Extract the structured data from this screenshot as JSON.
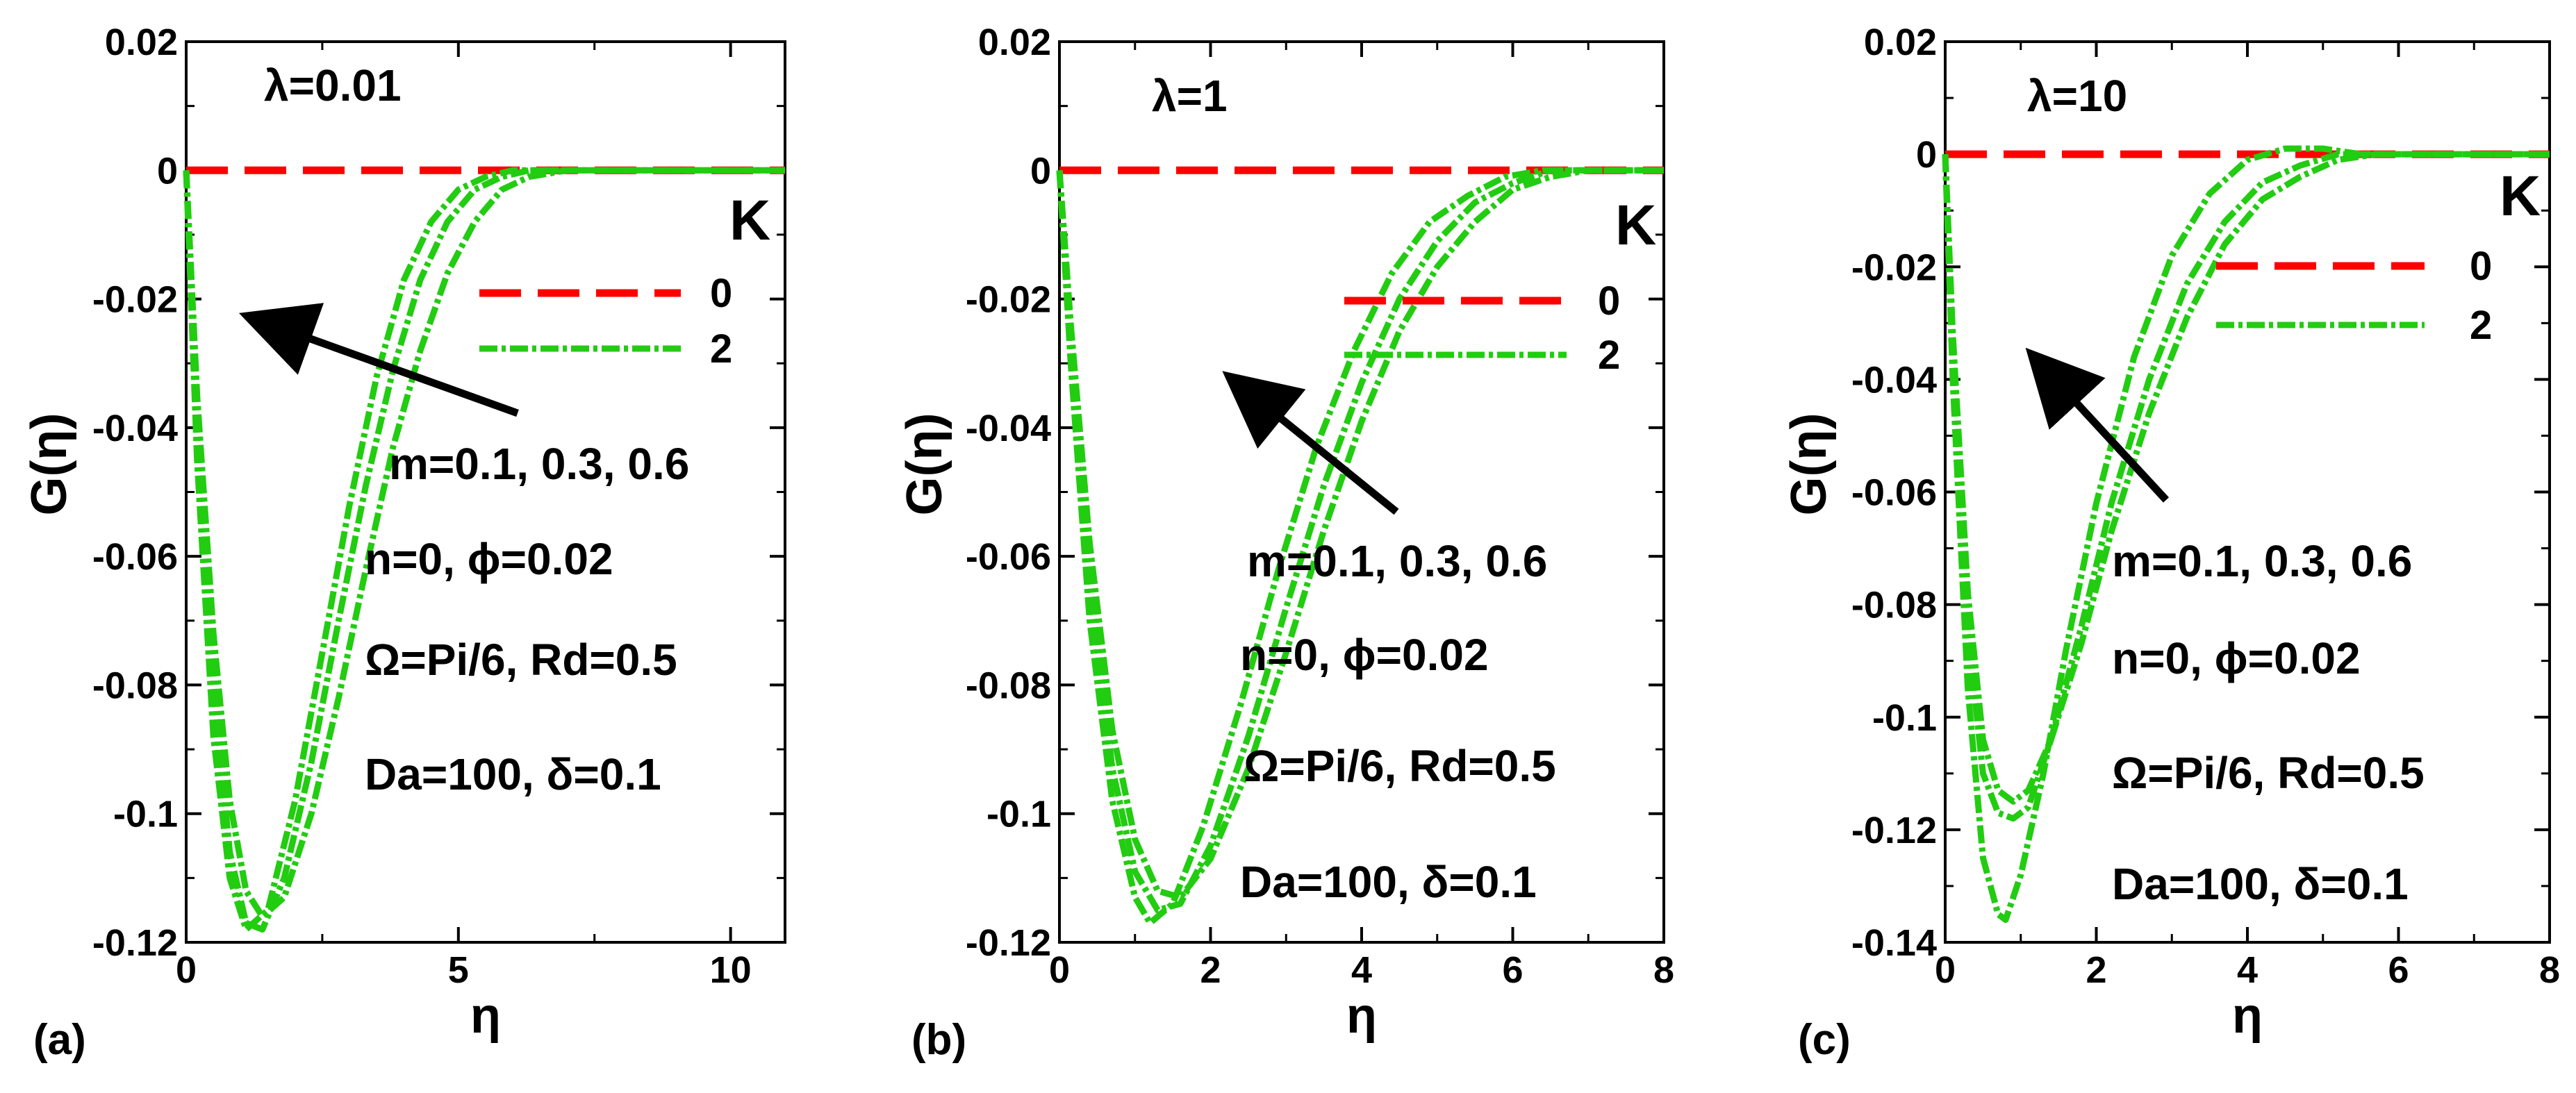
{
  "colors": {
    "k0": "#ff0000",
    "k2": "#22cc11",
    "arrow": "#000000",
    "axis": "#000000"
  },
  "chart_data": [
    {
      "type": "line",
      "panel_label": "(a)",
      "title": "λ=0.01",
      "xlabel": "η",
      "ylabel": "G(η)",
      "xlim": [
        0,
        11
      ],
      "ylim": [
        -0.12,
        0.02
      ],
      "xticks": [
        0,
        5,
        10
      ],
      "yticks": [
        0.02,
        0,
        -0.02,
        -0.04,
        -0.06,
        -0.08,
        -0.1,
        -0.12
      ],
      "legend": {
        "title": "K",
        "entries": [
          "0",
          "2"
        ]
      },
      "annotations": [
        "m=0.1, 0.3, 0.6",
        "n=0, ϕ=0.02",
        "Ω=Pi/6, Rd=0.5",
        "Da=100, δ=0.1"
      ],
      "series": [
        {
          "name": "K=0",
          "x": [
            0,
            11
          ],
          "y": [
            0,
            0
          ]
        },
        {
          "name": "K=2, m=0.1",
          "x": [
            0,
            0.2,
            0.5,
            0.8,
            1.1,
            1.5,
            2.0,
            2.5,
            3.0,
            3.5,
            4.0,
            4.5,
            5.0,
            5.5,
            6.0,
            6.5,
            7.5,
            9,
            11
          ],
          "y": [
            0,
            -0.045,
            -0.088,
            -0.11,
            -0.118,
            -0.115,
            -0.098,
            -0.075,
            -0.052,
            -0.032,
            -0.017,
            -0.008,
            -0.003,
            -0.001,
            0,
            0,
            0,
            0,
            0
          ]
        },
        {
          "name": "K=2, m=0.3",
          "x": [
            0,
            0.2,
            0.5,
            0.8,
            1.1,
            1.4,
            1.8,
            2.3,
            2.8,
            3.3,
            3.8,
            4.3,
            4.8,
            5.3,
            5.8,
            6.3,
            7.0,
            9,
            11
          ],
          "y": [
            0,
            -0.04,
            -0.08,
            -0.106,
            -0.117,
            -0.118,
            -0.11,
            -0.092,
            -0.07,
            -0.049,
            -0.031,
            -0.017,
            -0.008,
            -0.003,
            -0.001,
            0,
            0,
            0,
            0
          ]
        },
        {
          "name": "K=2, m=0.6",
          "x": [
            0,
            0.2,
            0.5,
            0.8,
            1.1,
            1.4,
            1.8,
            2.3,
            2.8,
            3.3,
            3.8,
            4.3,
            4.8,
            5.3,
            5.8,
            6.3,
            7.0,
            9,
            11
          ],
          "y": [
            0,
            -0.035,
            -0.072,
            -0.098,
            -0.112,
            -0.116,
            -0.113,
            -0.1,
            -0.082,
            -0.062,
            -0.043,
            -0.028,
            -0.016,
            -0.008,
            -0.003,
            -0.001,
            0,
            0,
            0
          ]
        }
      ]
    },
    {
      "type": "line",
      "panel_label": "(b)",
      "title": "λ=1",
      "xlabel": "η",
      "ylabel": "G(η)",
      "xlim": [
        0,
        8
      ],
      "ylim": [
        -0.12,
        0.02
      ],
      "xticks": [
        0,
        2,
        4,
        6,
        8
      ],
      "yticks": [
        0.02,
        0,
        -0.02,
        -0.04,
        -0.06,
        -0.08,
        -0.1,
        -0.12
      ],
      "legend": {
        "title": "K",
        "entries": [
          "0",
          "2"
        ]
      },
      "annotations": [
        "m=0.1, 0.3, 0.6",
        "n=0, ϕ=0.02",
        "Ω=Pi/6, Rd=0.5",
        "Da=100, δ=0.1"
      ],
      "series": [
        {
          "name": "K=0",
          "x": [
            0,
            8
          ],
          "y": [
            0,
            0
          ]
        },
        {
          "name": "K=2, m=0.1",
          "x": [
            0,
            0.15,
            0.4,
            0.7,
            1.0,
            1.2,
            1.5,
            1.9,
            2.4,
            2.9,
            3.4,
            3.9,
            4.4,
            4.9,
            5.4,
            5.9,
            6.4,
            7.0,
            8
          ],
          "y": [
            0,
            -0.03,
            -0.07,
            -0.098,
            -0.113,
            -0.117,
            -0.114,
            -0.102,
            -0.083,
            -0.062,
            -0.043,
            -0.028,
            -0.016,
            -0.008,
            -0.004,
            -0.001,
            0,
            0,
            0
          ]
        },
        {
          "name": "K=2, m=0.3",
          "x": [
            0,
            0.15,
            0.4,
            0.7,
            1.0,
            1.3,
            1.6,
            2.0,
            2.5,
            3.0,
            3.5,
            4.0,
            4.5,
            5.0,
            5.5,
            6.0,
            6.5,
            7.0,
            8
          ],
          "y": [
            0,
            -0.027,
            -0.064,
            -0.093,
            -0.109,
            -0.115,
            -0.114,
            -0.105,
            -0.088,
            -0.068,
            -0.049,
            -0.033,
            -0.02,
            -0.011,
            -0.005,
            -0.002,
            0,
            0,
            0
          ]
        },
        {
          "name": "K=2, m=0.6",
          "x": [
            0,
            0.15,
            0.4,
            0.7,
            1.0,
            1.3,
            1.6,
            2.0,
            2.5,
            3.0,
            3.5,
            4.0,
            4.5,
            5.0,
            5.5,
            6.0,
            6.5,
            7.0,
            8
          ],
          "y": [
            0,
            -0.024,
            -0.058,
            -0.087,
            -0.104,
            -0.112,
            -0.113,
            -0.107,
            -0.093,
            -0.075,
            -0.056,
            -0.039,
            -0.025,
            -0.015,
            -0.008,
            -0.003,
            -0.001,
            0,
            0
          ]
        }
      ]
    },
    {
      "type": "line",
      "panel_label": "(c)",
      "title": "λ=10",
      "xlabel": "η",
      "ylabel": "G(η)",
      "xlim": [
        0,
        8
      ],
      "ylim": [
        -0.14,
        0.02
      ],
      "xticks": [
        0,
        2,
        4,
        6,
        8
      ],
      "yticks": [
        0.02,
        0,
        -0.02,
        -0.04,
        -0.06,
        -0.08,
        -0.1,
        -0.12,
        -0.14
      ],
      "legend": {
        "title": "K",
        "entries": [
          "0",
          "2"
        ]
      },
      "annotations": [
        "m=0.1, 0.3, 0.6",
        "n=0, ϕ=0.02",
        "Ω=Pi/6, Rd=0.5",
        "Da=100, δ=0.1"
      ],
      "series": [
        {
          "name": "K=0",
          "x": [
            0,
            8
          ],
          "y": [
            0,
            0
          ]
        },
        {
          "name": "K=2, m=0.1",
          "x": [
            0,
            0.1,
            0.3,
            0.5,
            0.7,
            0.8,
            1.0,
            1.3,
            1.6,
            2.0,
            2.5,
            3.0,
            3.5,
            4.0,
            4.5,
            5.0,
            5.5,
            6.5,
            8
          ],
          "y": [
            0,
            -0.04,
            -0.095,
            -0.125,
            -0.135,
            -0.136,
            -0.128,
            -0.11,
            -0.088,
            -0.062,
            -0.036,
            -0.018,
            -0.007,
            -0.001,
            0.001,
            0.001,
            0,
            0,
            0
          ]
        },
        {
          "name": "K=2, m=0.3",
          "x": [
            0,
            0.1,
            0.3,
            0.5,
            0.7,
            0.9,
            1.1,
            1.4,
            1.8,
            2.2,
            2.7,
            3.2,
            3.7,
            4.2,
            4.7,
            5.2,
            5.7,
            6.5,
            8
          ],
          "y": [
            0,
            -0.036,
            -0.085,
            -0.11,
            -0.117,
            -0.118,
            -0.116,
            -0.104,
            -0.084,
            -0.062,
            -0.04,
            -0.023,
            -0.012,
            -0.005,
            -0.002,
            0,
            0,
            0,
            0
          ]
        },
        {
          "name": "K=2, m=0.6",
          "x": [
            0,
            0.1,
            0.3,
            0.5,
            0.7,
            0.9,
            1.1,
            1.4,
            1.8,
            2.2,
            2.7,
            3.2,
            3.7,
            4.2,
            4.7,
            5.2,
            5.7,
            6.5,
            8
          ],
          "y": [
            0,
            -0.032,
            -0.078,
            -0.104,
            -0.113,
            -0.115,
            -0.113,
            -0.104,
            -0.087,
            -0.067,
            -0.046,
            -0.029,
            -0.016,
            -0.008,
            -0.004,
            -0.001,
            0,
            0,
            0
          ]
        }
      ]
    }
  ]
}
